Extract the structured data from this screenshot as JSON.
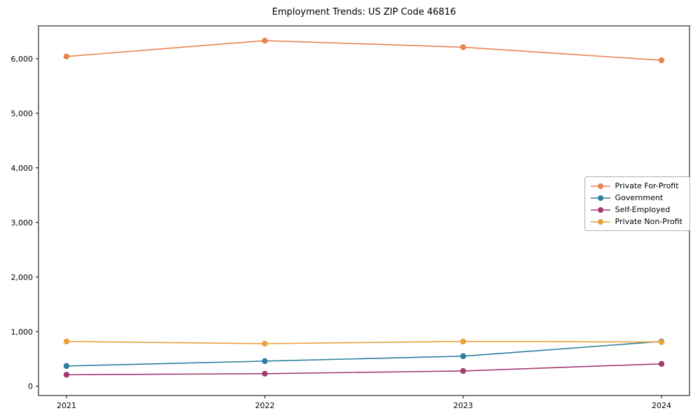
{
  "chart": {
    "title": "Employment Trends: US ZIP Code 46816"
  },
  "chart_data": {
    "type": "line",
    "title": "Employment Trends: US ZIP Code 46816",
    "categories": [
      "2021",
      "2022",
      "2023",
      "2024"
    ],
    "series": [
      {
        "name": "Private For-Profit",
        "color": "#e8834e",
        "values": [
          6040,
          6330,
          6210,
          5970
        ]
      },
      {
        "name": "Government",
        "color": "#2d7f9d",
        "values": [
          370,
          460,
          550,
          820
        ]
      },
      {
        "name": "Self-Employed",
        "color": "#a23b72",
        "values": [
          210,
          230,
          280,
          410
        ]
      },
      {
        "name": "Private Non-Profit",
        "color": "#e9a13b",
        "values": [
          820,
          780,
          820,
          810
        ]
      }
    ],
    "xlabel": "",
    "ylabel": "",
    "ylim": [
      -170,
      6600
    ],
    "yticks": [
      0,
      1000,
      2000,
      3000,
      4000,
      5000,
      6000
    ],
    "legend_position": "center right",
    "grid": false,
    "marker": "circle"
  }
}
